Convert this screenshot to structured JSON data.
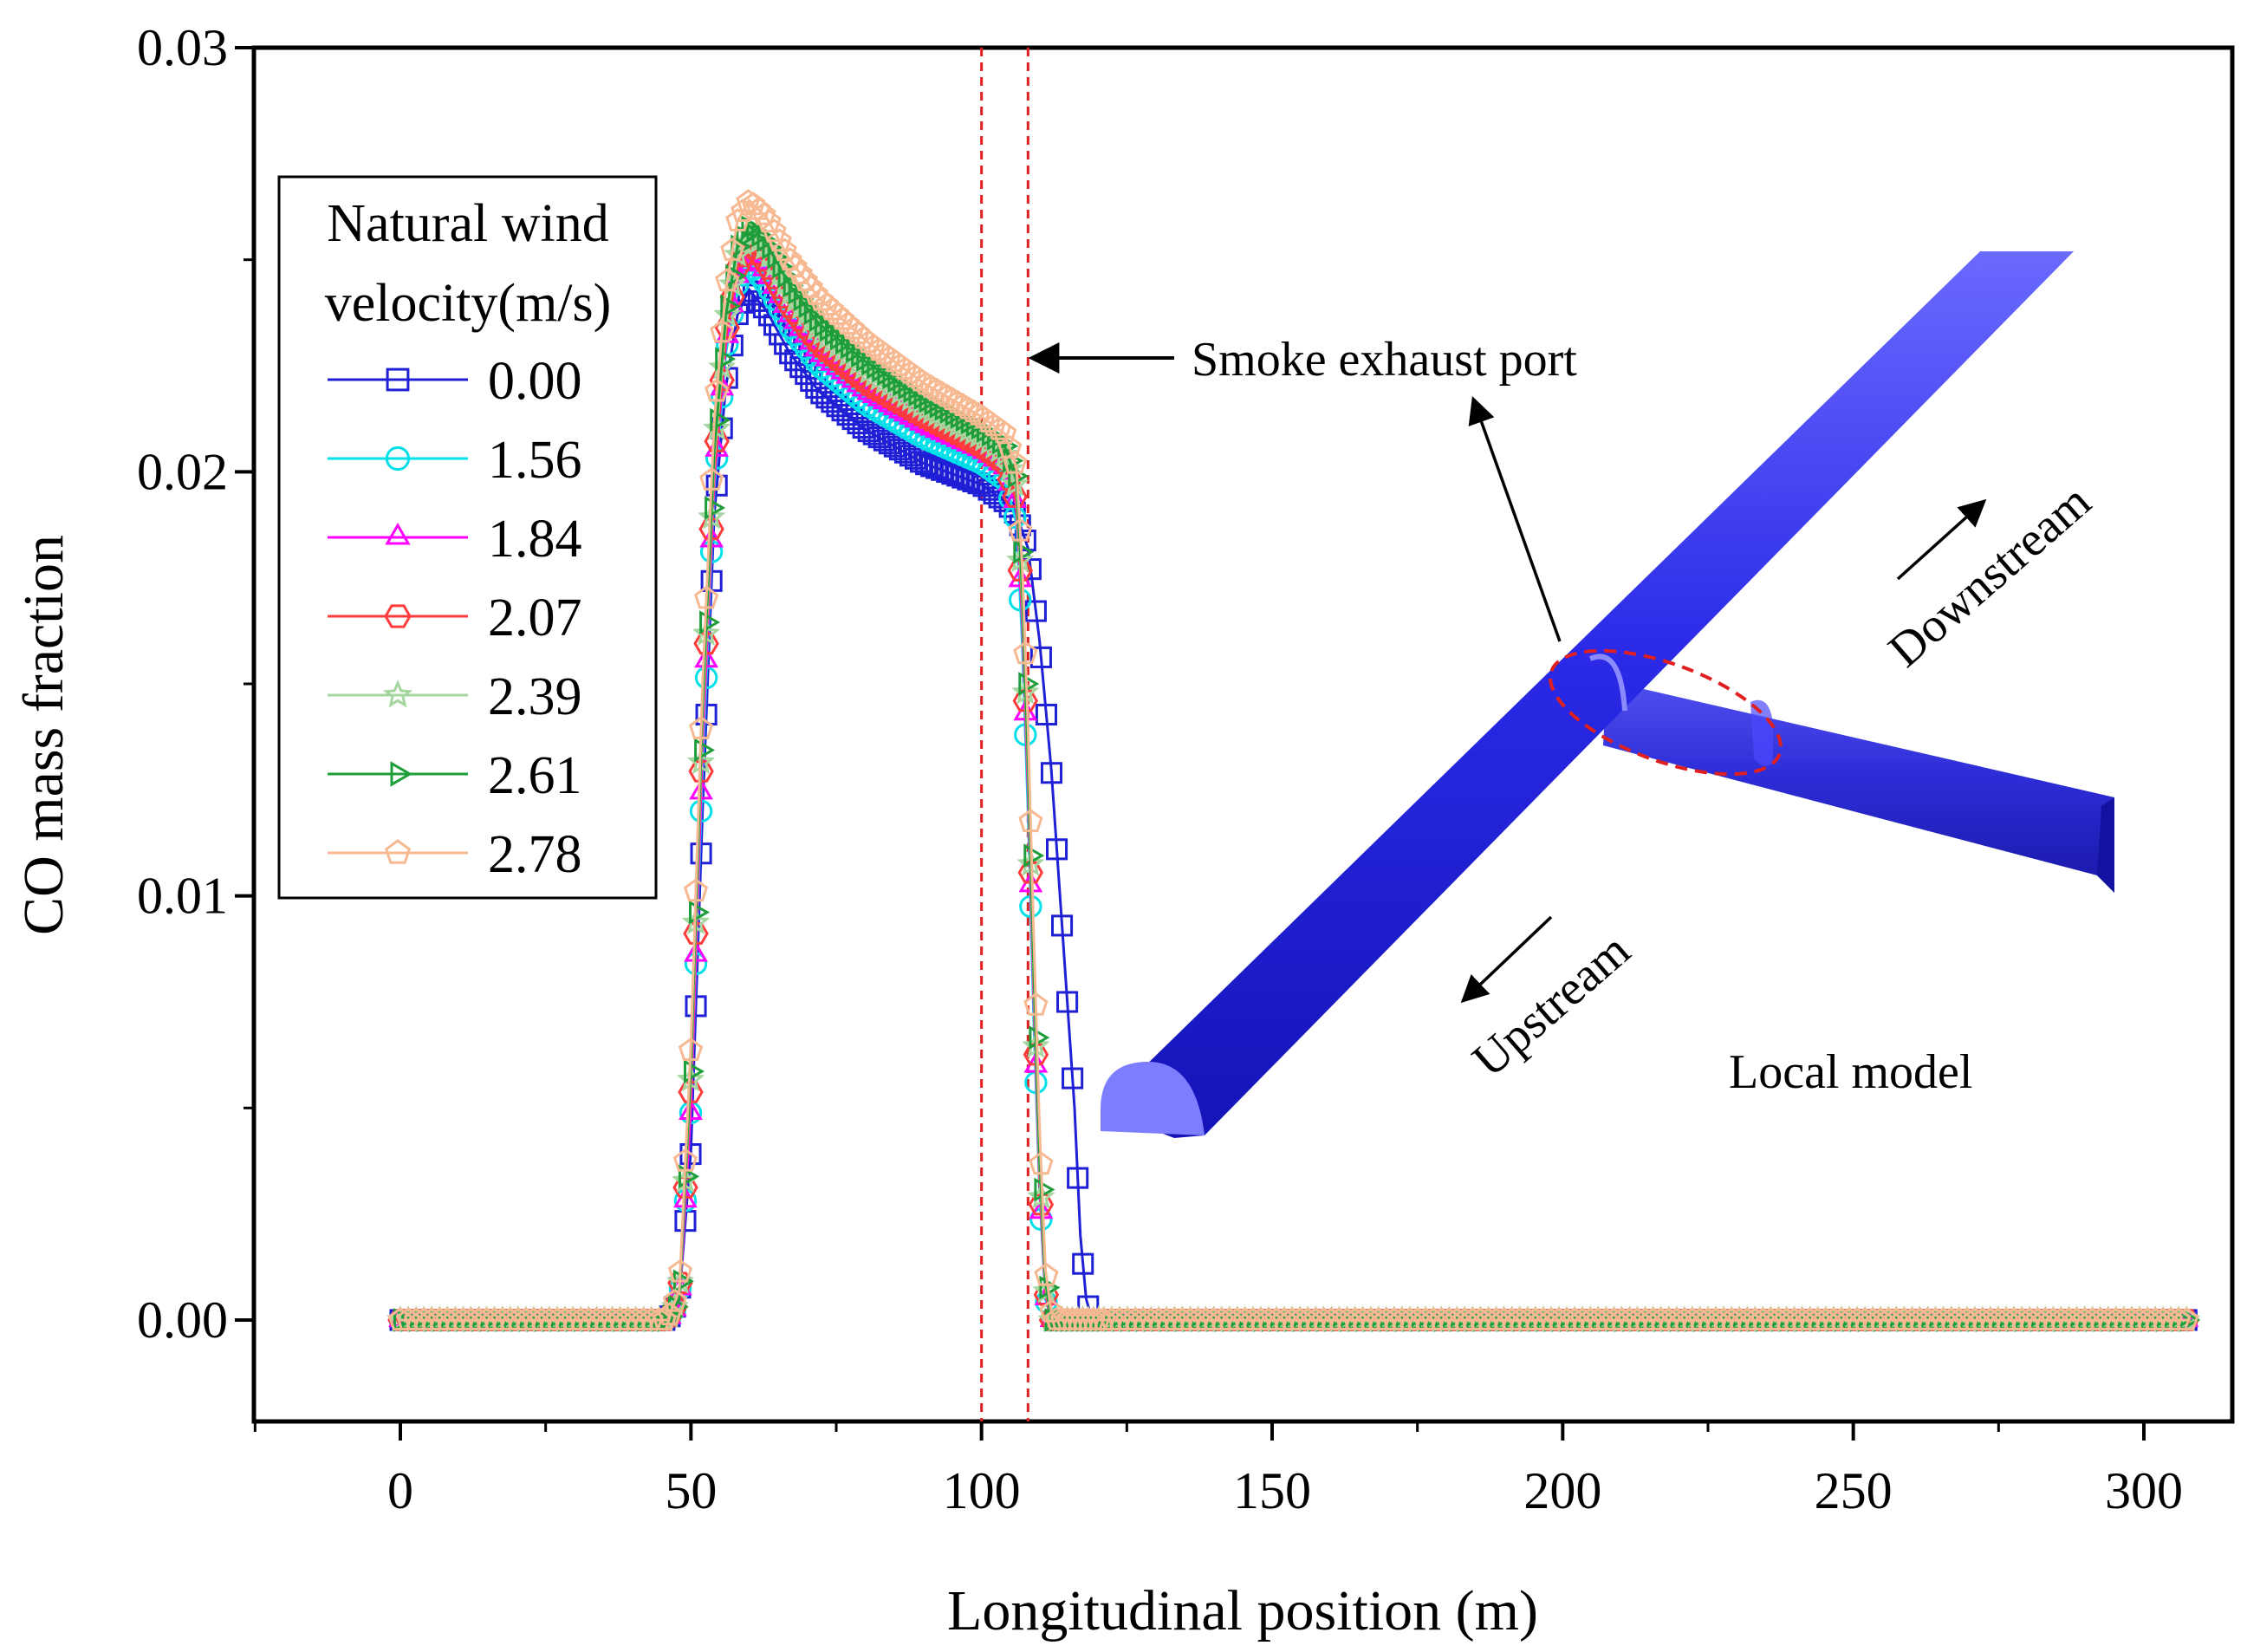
{
  "chart_data": {
    "type": "line",
    "title": "",
    "xlabel": "Longitudinal position (m)",
    "ylabel": "CO mass fraction",
    "xlim": [
      -25,
      315
    ],
    "ylim": [
      -0.0025,
      0.03
    ],
    "xticks": [
      0,
      50,
      100,
      150,
      200,
      250,
      300
    ],
    "xtick_labels": [
      "0",
      "50",
      "100",
      "150",
      "200",
      "250",
      "300"
    ],
    "yticks": [
      0.0,
      0.01,
      0.02,
      0.03
    ],
    "ytick_labels": [
      "0.00",
      "0.01",
      "0.02",
      "0.03"
    ],
    "legend": {
      "title_line1": "Natural wind",
      "title_line2": "velocity(m/s)",
      "position": "top-left"
    },
    "series": [
      {
        "name": "0.00",
        "color": "#1f1fd6",
        "marker": "square",
        "points": [
          [
            0,
            0
          ],
          [
            46,
            0
          ],
          [
            48,
            0.0005
          ],
          [
            50,
            0.004
          ],
          [
            52,
            0.012
          ],
          [
            54,
            0.019
          ],
          [
            56,
            0.022
          ],
          [
            58,
            0.0237
          ],
          [
            60,
            0.0243
          ],
          [
            63,
            0.0238
          ],
          [
            67,
            0.0228
          ],
          [
            72,
            0.0219
          ],
          [
            80,
            0.021
          ],
          [
            90,
            0.0202
          ],
          [
            100,
            0.0197
          ],
          [
            104,
            0.0193
          ],
          [
            106,
            0.019
          ],
          [
            108,
            0.0182
          ],
          [
            110,
            0.016
          ],
          [
            112,
            0.013
          ],
          [
            114,
            0.009
          ],
          [
            116,
            0.005
          ],
          [
            117,
            0.002
          ],
          [
            118,
            0.0005
          ],
          [
            119,
            0
          ],
          [
            308,
            0
          ]
        ]
      },
      {
        "name": "1.56",
        "color": "#00e0e8",
        "marker": "circle",
        "points": [
          [
            0,
            0
          ],
          [
            46,
            0
          ],
          [
            48,
            0.0004
          ],
          [
            50,
            0.005
          ],
          [
            52,
            0.013
          ],
          [
            54,
            0.0196
          ],
          [
            56,
            0.0228
          ],
          [
            58,
            0.0244
          ],
          [
            60,
            0.0249
          ],
          [
            63,
            0.0244
          ],
          [
            67,
            0.0234
          ],
          [
            72,
            0.0225
          ],
          [
            80,
            0.0216
          ],
          [
            90,
            0.0208
          ],
          [
            100,
            0.0202
          ],
          [
            104,
            0.0198
          ],
          [
            106,
            0.0188
          ],
          [
            107,
            0.016
          ],
          [
            108,
            0.012
          ],
          [
            109,
            0.007
          ],
          [
            110,
            0.003
          ],
          [
            111,
            0.0005
          ],
          [
            112,
            0
          ],
          [
            308,
            0
          ]
        ]
      },
      {
        "name": "1.84",
        "color": "#ff00ff",
        "marker": "triangle",
        "points": [
          [
            0,
            0
          ],
          [
            46,
            0
          ],
          [
            48,
            0.0004
          ],
          [
            50,
            0.005
          ],
          [
            52,
            0.0135
          ],
          [
            54,
            0.0198
          ],
          [
            56,
            0.023
          ],
          [
            58,
            0.0246
          ],
          [
            60,
            0.0252
          ],
          [
            63,
            0.0247
          ],
          [
            67,
            0.0237
          ],
          [
            72,
            0.0228
          ],
          [
            80,
            0.0219
          ],
          [
            90,
            0.0211
          ],
          [
            100,
            0.0205
          ],
          [
            104,
            0.0201
          ],
          [
            106,
            0.0192
          ],
          [
            107,
            0.0165
          ],
          [
            108,
            0.0125
          ],
          [
            109,
            0.0075
          ],
          [
            110,
            0.0032
          ],
          [
            111,
            0.0006
          ],
          [
            112,
            0
          ],
          [
            308,
            0
          ]
        ]
      },
      {
        "name": "2.07",
        "color": "#ff3b3b",
        "marker": "hexagon",
        "points": [
          [
            0,
            0
          ],
          [
            46,
            0
          ],
          [
            48,
            0.0005
          ],
          [
            50,
            0.0055
          ],
          [
            52,
            0.014
          ],
          [
            54,
            0.02
          ],
          [
            56,
            0.0232
          ],
          [
            58,
            0.0248
          ],
          [
            60,
            0.0254
          ],
          [
            63,
            0.0249
          ],
          [
            67,
            0.0239
          ],
          [
            72,
            0.023
          ],
          [
            80,
            0.0221
          ],
          [
            90,
            0.0213
          ],
          [
            100,
            0.0206
          ],
          [
            104,
            0.0202
          ],
          [
            106,
            0.0193
          ],
          [
            107,
            0.0168
          ],
          [
            108,
            0.0128
          ],
          [
            109,
            0.0078
          ],
          [
            110,
            0.0034
          ],
          [
            111,
            0.0007
          ],
          [
            112,
            0
          ],
          [
            308,
            0
          ]
        ]
      },
      {
        "name": "2.39",
        "color": "#a6d6a0",
        "marker": "star",
        "points": [
          [
            0,
            0
          ],
          [
            46,
            0
          ],
          [
            48,
            0.0005
          ],
          [
            50,
            0.0058
          ],
          [
            52,
            0.0142
          ],
          [
            54,
            0.0203
          ],
          [
            56,
            0.0235
          ],
          [
            58,
            0.0251
          ],
          [
            60,
            0.0257
          ],
          [
            63,
            0.0252
          ],
          [
            67,
            0.0242
          ],
          [
            72,
            0.0233
          ],
          [
            80,
            0.0224
          ],
          [
            90,
            0.0215
          ],
          [
            100,
            0.0208
          ],
          [
            104,
            0.0204
          ],
          [
            106,
            0.0196
          ],
          [
            107,
            0.017
          ],
          [
            108,
            0.013
          ],
          [
            109,
            0.008
          ],
          [
            110,
            0.0036
          ],
          [
            111,
            0.0008
          ],
          [
            112,
            0
          ],
          [
            308,
            0
          ]
        ]
      },
      {
        "name": "2.61",
        "color": "#1e9e3a",
        "marker": "triangle-right",
        "points": [
          [
            0,
            0
          ],
          [
            46,
            0
          ],
          [
            48,
            0.0005
          ],
          [
            50,
            0.006
          ],
          [
            52,
            0.0145
          ],
          [
            54,
            0.0205
          ],
          [
            56,
            0.0237
          ],
          [
            58,
            0.0253
          ],
          [
            60,
            0.0258
          ],
          [
            63,
            0.0254
          ],
          [
            67,
            0.0244
          ],
          [
            72,
            0.0235
          ],
          [
            80,
            0.0226
          ],
          [
            90,
            0.0217
          ],
          [
            100,
            0.021
          ],
          [
            104,
            0.0206
          ],
          [
            106,
            0.0198
          ],
          [
            107,
            0.0172
          ],
          [
            108,
            0.0132
          ],
          [
            109,
            0.0082
          ],
          [
            110,
            0.0038
          ],
          [
            111,
            0.0009
          ],
          [
            112,
            0
          ],
          [
            308,
            0
          ]
        ]
      },
      {
        "name": "2.78",
        "color": "#f7b992",
        "marker": "pentagon",
        "points": [
          [
            0,
            0
          ],
          [
            46,
            0
          ],
          [
            48,
            0.0007
          ],
          [
            50,
            0.0065
          ],
          [
            52,
            0.015
          ],
          [
            54,
            0.0212
          ],
          [
            56,
            0.0243
          ],
          [
            58,
            0.0259
          ],
          [
            60,
            0.0264
          ],
          [
            63,
            0.026
          ],
          [
            67,
            0.025
          ],
          [
            72,
            0.0241
          ],
          [
            80,
            0.0231
          ],
          [
            90,
            0.0221
          ],
          [
            100,
            0.0213
          ],
          [
            104,
            0.0209
          ],
          [
            106,
            0.0201
          ],
          [
            107,
            0.0178
          ],
          [
            108,
            0.014
          ],
          [
            109,
            0.009
          ],
          [
            110,
            0.0045
          ],
          [
            111,
            0.0012
          ],
          [
            112,
            0.0002
          ],
          [
            113,
            0
          ],
          [
            308,
            0
          ]
        ]
      }
    ],
    "reference_lines": [
      {
        "x": 100,
        "color": "#e02020",
        "style": "dashed"
      },
      {
        "x": 108,
        "color": "#e02020",
        "style": "dashed"
      }
    ],
    "annotations": {
      "smoke_exhaust_port": "Smoke exhaust port",
      "downstream": "Downstream",
      "upstream": "Upstream",
      "local_model": "Local model"
    }
  }
}
